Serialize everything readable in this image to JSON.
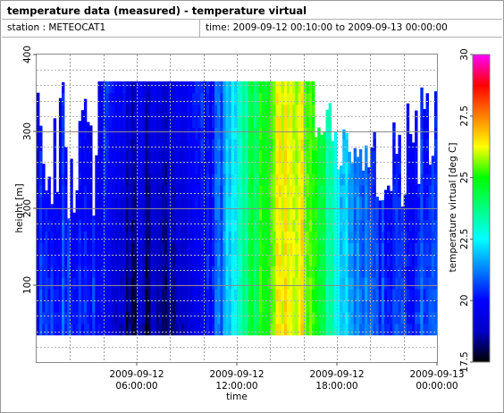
{
  "header": {
    "title": "temperature data (measured) - temperature virtual",
    "station_label": "station : METEOCAT1",
    "time_label": "time: 2009-09-12 00:10:00 to 2009-09-13 00:00:00"
  },
  "chart_data": {
    "type": "heatmap",
    "xlabel": "time",
    "ylabel": "height [m]",
    "colorbar_label": "temperature virtual [deg C]",
    "x_ticks": [
      {
        "lines": [
          "2009-09-12",
          "06:00:00"
        ]
      },
      {
        "lines": [
          "2009-09-12",
          "12:00:00"
        ]
      },
      {
        "lines": [
          "2009-09-12",
          "18:00:00"
        ]
      },
      {
        "lines": [
          "2009-09-13",
          "00:00:00"
        ]
      }
    ],
    "x_tick_hours": [
      6,
      12,
      18,
      24
    ],
    "x_range_hours": [
      0,
      24
    ],
    "y_ticks": [
      100,
      200,
      300,
      400
    ],
    "ylim": [
      0,
      400
    ],
    "colorbar_ticks": [
      "17.5",
      "20",
      "22.5",
      "25",
      "27.5",
      "30"
    ],
    "color_range": [
      17.5,
      30
    ],
    "grid": true,
    "data_height_range": [
      35,
      365
    ],
    "time_step_minutes": 10,
    "series": [
      {
        "name": "temperature virtual",
        "profile_hours": [
          0,
          2,
          3.5,
          4.5,
          5.5,
          7,
          8.5,
          10,
          11,
          12,
          13,
          14,
          15,
          16,
          17,
          18,
          19,
          20,
          21,
          22,
          23,
          24
        ],
        "values_degC": [
          20.4,
          20.6,
          20.3,
          19.3,
          18.4,
          18.3,
          18.5,
          19.4,
          21.0,
          22.8,
          24.3,
          25.6,
          26.5,
          26.3,
          24.6,
          22.6,
          21.6,
          20.9,
          20.5,
          20.5,
          20.7,
          20.9
        ]
      }
    ]
  },
  "colors": {
    "colormap": [
      "#000000",
      "#0000c8",
      "#0000ff",
      "#0080ff",
      "#00ffff",
      "#00ff80",
      "#00ff00",
      "#ffff00",
      "#ff8000",
      "#ff0000",
      "#ff00ff"
    ]
  }
}
